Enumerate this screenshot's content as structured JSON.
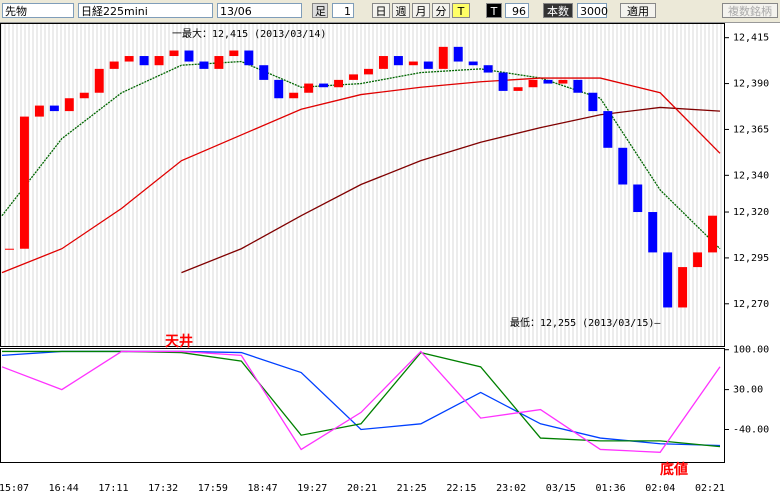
{
  "toolbar": {
    "market": "先物",
    "symbol": "日経225mini",
    "month": "13/06",
    "bar_label": "足",
    "interval": 1,
    "periods": [
      "日",
      "週",
      "月",
      "分",
      "T"
    ],
    "t_label": "T",
    "count": 96,
    "count_label": "本数",
    "bars": 3000,
    "apply": "適用",
    "multi": "複数銘柄"
  },
  "price_chart": {
    "ylim": [
      12247,
      12423
    ],
    "yticks": [
      {
        "value": 12415,
        "label": "12,415"
      },
      {
        "value": 12390,
        "label": "12,390"
      },
      {
        "value": 12365,
        "label": "12,365"
      },
      {
        "value": 12340,
        "label": "12,340"
      },
      {
        "value": 12320,
        "label": "12,320"
      },
      {
        "value": 12295,
        "label": "12,295"
      },
      {
        "value": 12270,
        "label": "12,270"
      }
    ],
    "closes": [
      12300,
      12372,
      12378,
      12375,
      12382,
      12385,
      12398,
      12402,
      12405,
      12400,
      12405,
      12408,
      12402,
      12398,
      12405,
      12408,
      12400,
      12392,
      12382,
      12385,
      12390,
      12388,
      12392,
      12395,
      12398,
      12405,
      12400,
      12402,
      12398,
      12410,
      12402,
      12400,
      12396,
      12386,
      12388,
      12392,
      12390,
      12392,
      12385,
      12375,
      12355,
      12335,
      12320,
      12298,
      12268,
      12290,
      12298,
      12318
    ],
    "up_color": "#ff0000",
    "down_color": "#0000ff",
    "lines": [
      {
        "color": "#006600",
        "values": [
          12318,
          12360,
          12385,
          12400,
          12402,
          12388,
          12390,
          12396,
          12398,
          12393,
          12382,
          12332,
          12300
        ]
      },
      {
        "color": "#800000",
        "values": [
          null,
          null,
          null,
          12287,
          12300,
          12318,
          12335,
          12348,
          12358,
          12366,
          12373,
          12377,
          12375
        ]
      },
      {
        "color": "#e00000",
        "values": [
          12287,
          12300,
          12322,
          12348,
          12362,
          12376,
          12384,
          12388,
          12391,
          12393,
          12393,
          12385,
          12352
        ]
      }
    ],
    "max_note": "一最大：12,415 (2013/03/14)",
    "min_note": "最低：12,255 (2013/03/15)—",
    "top_note": "天井"
  },
  "oscillator": {
    "ylim": [
      -97,
      103
    ],
    "yticks": [
      {
        "value": 100,
        "label": "100.00"
      },
      {
        "value": 30,
        "label": "30.00"
      },
      {
        "value": -40,
        "label": "-40.00"
      }
    ],
    "lines": [
      {
        "color": "#0040ff",
        "values": [
          90,
          97,
          97,
          97,
          95,
          60,
          -40,
          -30,
          25,
          -30,
          -55,
          -65,
          -68
        ]
      },
      {
        "color": "#008000",
        "values": [
          97,
          97,
          97,
          95,
          80,
          -50,
          -30,
          95,
          70,
          -55,
          -60,
          -60,
          -70
        ]
      },
      {
        "color": "#ff33ff",
        "values": [
          70,
          30,
          97,
          97,
          90,
          -75,
          -10,
          97,
          -20,
          -5,
          -75,
          -80,
          70
        ]
      }
    ],
    "bottom_note": "底値"
  },
  "x_labels": [
    "15:07",
    "16:44",
    "17:11",
    "17:32",
    "17:59",
    "18:47",
    "19:27",
    "20:21",
    "21:25",
    "22:15",
    "23:02",
    "03/15",
    "01:36",
    "02:04",
    "02:21"
  ]
}
